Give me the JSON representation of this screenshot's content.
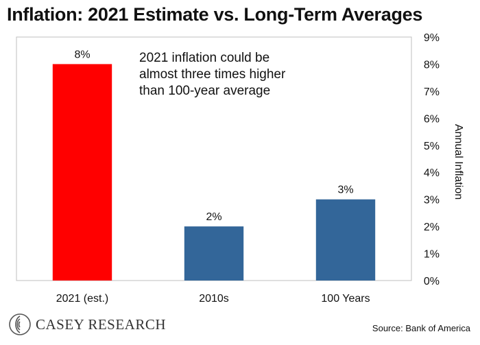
{
  "title": "Inflation: 2021 Estimate vs. Long-Term Averages",
  "source": "Source: Bank of America",
  "brand": "CASEY RESEARCH",
  "colors": {
    "highlight": "#ff0000",
    "bar": "#336699",
    "axis": "#bfbfbf"
  },
  "chart_data": {
    "type": "bar",
    "categories": [
      "2021 (est.)",
      "2010s",
      "100 Years"
    ],
    "values": [
      8,
      2,
      3
    ],
    "data_labels": [
      "8%",
      "2%",
      "3%"
    ],
    "bar_colors": [
      "#ff0000",
      "#336699",
      "#336699"
    ],
    "ylabel": "Annual Inflation",
    "ylim": [
      0,
      9
    ],
    "yticks": [
      "0%",
      "1%",
      "2%",
      "3%",
      "4%",
      "5%",
      "6%",
      "7%",
      "8%",
      "9%"
    ],
    "y_axis_side": "right",
    "grid": false,
    "annotation": [
      "2021 inflation could be",
      "almost three times higher",
      "than 100-year average"
    ]
  }
}
